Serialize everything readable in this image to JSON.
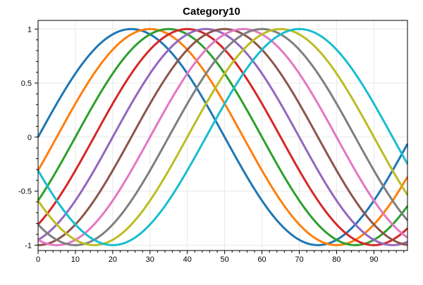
{
  "chart_data": {
    "type": "line",
    "title": "Category10",
    "xlabel": "",
    "ylabel": "",
    "xlim": [
      0,
      99
    ],
    "ylim": [
      -1.05,
      1.08
    ],
    "xticks": [
      0,
      10,
      20,
      30,
      40,
      50,
      60,
      70,
      80,
      90
    ],
    "yticks": [
      1,
      0.5,
      0,
      -0.5,
      -1
    ],
    "ytick_labels": [
      "1",
      "0.5",
      "0",
      "-0.5",
      "-1"
    ],
    "grid": true,
    "legend": "none",
    "series_function": "y = sin(2*pi*(x/100 - phase))",
    "series": [
      {
        "color": "#1f77b4",
        "phase": 0.0
      },
      {
        "color": "#ff7f0e",
        "phase": 0.05
      },
      {
        "color": "#2ca02c",
        "phase": 0.1
      },
      {
        "color": "#d62728",
        "phase": 0.15
      },
      {
        "color": "#9467bd",
        "phase": 0.2
      },
      {
        "color": "#8c564b",
        "phase": 0.25
      },
      {
        "color": "#e377c2",
        "phase": 0.3
      },
      {
        "color": "#7f7f7f",
        "phase": 0.35
      },
      {
        "color": "#bcbd22",
        "phase": 0.4
      },
      {
        "color": "#17becf",
        "phase": 0.45
      }
    ]
  }
}
